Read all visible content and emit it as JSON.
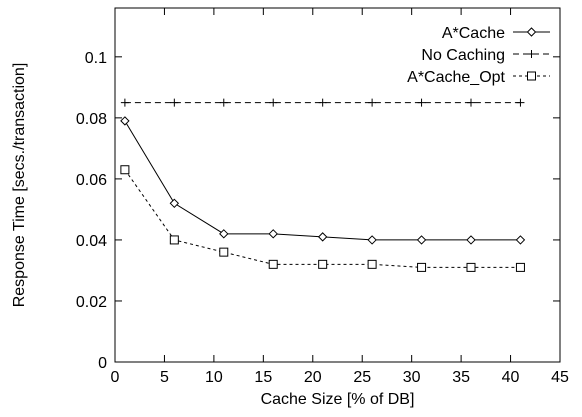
{
  "chart_data": {
    "type": "line",
    "xlabel": "Cache Size [% of DB]",
    "ylabel": "Response Time [secs./transaction]",
    "xlim": [
      0,
      45
    ],
    "ylim": [
      0,
      0.116
    ],
    "xticks": [
      0,
      5,
      10,
      15,
      20,
      25,
      30,
      35,
      40,
      45
    ],
    "xtick_labels": [
      "0",
      "5",
      "10",
      "15",
      "20",
      "25",
      "30",
      "35",
      "40",
      "45"
    ],
    "yticks": [
      0,
      0.02,
      0.04,
      0.06,
      0.08,
      0.1
    ],
    "ytick_labels": [
      "0",
      "0.02",
      "0.04",
      "0.06",
      "0.08",
      "0.1"
    ],
    "grid": false,
    "legend_position": "top-right",
    "series": [
      {
        "name": "A*Cache",
        "marker": "diamond",
        "line": "solid",
        "x": [
          1,
          6,
          11,
          16,
          21,
          26,
          31,
          36,
          41
        ],
        "y": [
          0.079,
          0.052,
          0.042,
          0.042,
          0.041,
          0.04,
          0.04,
          0.04,
          0.04
        ]
      },
      {
        "name": "No Caching",
        "marker": "plus",
        "line": "dashed",
        "x": [
          1,
          6,
          11,
          16,
          21,
          26,
          31,
          36,
          41
        ],
        "y": [
          0.085,
          0.085,
          0.085,
          0.085,
          0.085,
          0.085,
          0.085,
          0.085,
          0.085
        ]
      },
      {
        "name": "A*Cache_Opt",
        "marker": "square",
        "line": "dotted",
        "x": [
          1,
          6,
          11,
          16,
          21,
          26,
          31,
          36,
          41
        ],
        "y": [
          0.063,
          0.04,
          0.036,
          0.032,
          0.032,
          0.032,
          0.031,
          0.031,
          0.031
        ]
      }
    ]
  }
}
